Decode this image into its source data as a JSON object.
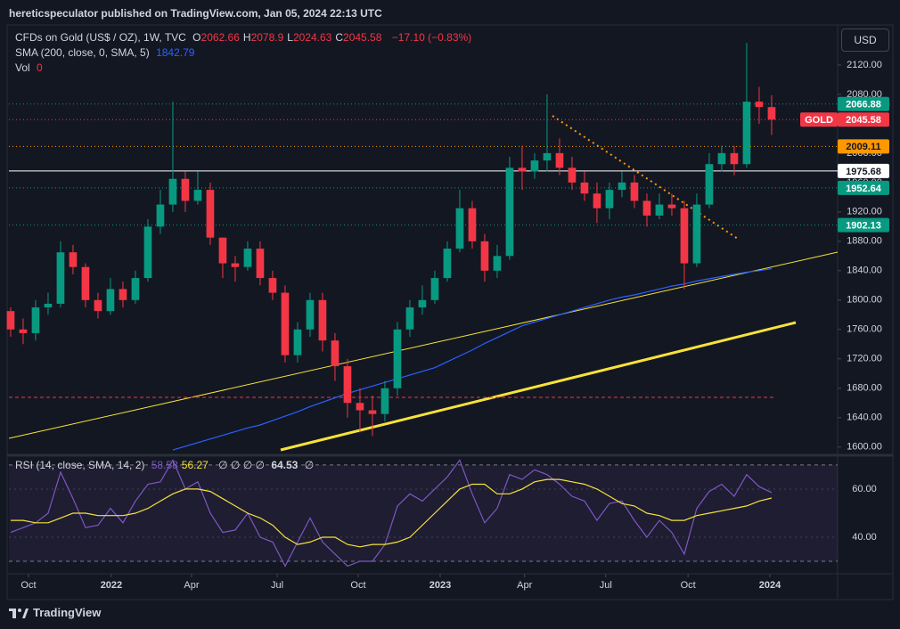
{
  "header": {
    "publisher": "hereticspeculator published on TradingView.com, Jan 05, 2024 22:13 UTC"
  },
  "chart_data": {
    "type": "candlestick",
    "legend": {
      "symbol": "CFDs on Gold (US$ / OZ), 1W, TVC",
      "ohlc": [
        {
          "label": "O",
          "value": 2062.66
        },
        {
          "label": "H",
          "value": 2078.9
        },
        {
          "label": "L",
          "value": 2024.63
        },
        {
          "label": "C",
          "value": 2045.58
        }
      ],
      "change": "−17.10 (−0.83%)",
      "sma_label": "SMA (200, close, 0, SMA, 5)",
      "sma_value": 1842.79,
      "vol_label": "Vol",
      "vol_value": 0
    },
    "currency": "USD",
    "open": [
      1785,
      1760,
      1755,
      1790,
      1795,
      1865,
      1845,
      1800,
      1785,
      1815,
      1800,
      1830,
      1900,
      1930,
      1965,
      1935,
      1950,
      1885,
      1850,
      1845,
      1870,
      1830,
      1810,
      1725,
      1760,
      1800,
      1745,
      1710,
      1660,
      1650,
      1645,
      1680,
      1760,
      1790,
      1800,
      1830,
      1870,
      1925,
      1880,
      1840,
      1860,
      1980,
      1975,
      1990,
      2000,
      1980,
      1960,
      1945,
      1925,
      1950,
      1960,
      1935,
      1915,
      1930,
      1925,
      1850,
      1930,
      1985,
      2000,
      1985,
      2070,
      2062.66
    ],
    "high": [
      1790,
      1775,
      1800,
      1810,
      1880,
      1875,
      1850,
      1810,
      1830,
      1825,
      1840,
      1910,
      1950,
      2070,
      1975,
      1975,
      1960,
      1885,
      1860,
      1880,
      1880,
      1840,
      1820,
      1770,
      1810,
      1810,
      1755,
      1720,
      1680,
      1670,
      1690,
      1770,
      1800,
      1820,
      1840,
      1880,
      1950,
      1935,
      1890,
      1875,
      1995,
      2010,
      2000,
      2080,
      2020,
      1995,
      1975,
      1960,
      1960,
      1975,
      1970,
      1945,
      1945,
      1945,
      1935,
      1945,
      2000,
      2010,
      2010,
      2150,
      2090,
      2078.9
    ],
    "low": [
      1750,
      1740,
      1745,
      1780,
      1790,
      1835,
      1790,
      1775,
      1780,
      1790,
      1795,
      1825,
      1890,
      1920,
      1920,
      1930,
      1875,
      1830,
      1825,
      1840,
      1820,
      1800,
      1715,
      1715,
      1750,
      1730,
      1690,
      1640,
      1620,
      1615,
      1635,
      1670,
      1750,
      1780,
      1795,
      1825,
      1865,
      1870,
      1825,
      1830,
      1855,
      1950,
      1965,
      1975,
      1970,
      1950,
      1935,
      1905,
      1910,
      1940,
      1925,
      1900,
      1910,
      1915,
      1815,
      1845,
      1925,
      1975,
      1970,
      1980,
      2040,
      2024.63
    ],
    "close": [
      1760,
      1755,
      1790,
      1795,
      1865,
      1845,
      1800,
      1785,
      1815,
      1800,
      1830,
      1900,
      1930,
      1965,
      1935,
      1950,
      1885,
      1850,
      1845,
      1870,
      1830,
      1810,
      1725,
      1760,
      1800,
      1745,
      1710,
      1660,
      1650,
      1645,
      1680,
      1760,
      1790,
      1800,
      1830,
      1870,
      1925,
      1880,
      1840,
      1860,
      1980,
      1975,
      1990,
      2000,
      1980,
      1960,
      1945,
      1925,
      1950,
      1960,
      1935,
      1915,
      1930,
      1925,
      1850,
      1930,
      1985,
      2000,
      1985,
      2070,
      2062.66,
      2045.58
    ],
    "up_color": "#089981",
    "down_color": "#f23645",
    "sma": {
      "color": "#2962ff",
      "values": [
        null,
        null,
        null,
        null,
        null,
        null,
        null,
        null,
        null,
        null,
        null,
        null,
        null,
        1596,
        1601,
        1606,
        1611,
        1616,
        1621,
        1626,
        1630,
        1636,
        1642,
        1648,
        1655,
        1661,
        1667,
        1673,
        1678,
        1683,
        1688,
        1693,
        1698,
        1703,
        1708,
        1716,
        1724,
        1732,
        1741,
        1749,
        1757,
        1765,
        1770,
        1775,
        1780,
        1785,
        1790,
        1795,
        1800,
        1804,
        1807,
        1811,
        1815,
        1819,
        1822,
        1826,
        1829,
        1832,
        1835,
        1838,
        1840,
        1842.79
      ]
    },
    "xlim": [
      -0.14,
      66.29
    ],
    "xticks": [
      {
        "value": 1.43,
        "label": "Oct"
      },
      {
        "value": 8.07,
        "label": "2022"
      },
      {
        "value": 14.5,
        "label": "Apr"
      },
      {
        "value": 21.36,
        "label": "Jul"
      },
      {
        "value": 27.86,
        "label": "Oct"
      },
      {
        "value": 34.43,
        "label": "2023"
      },
      {
        "value": 41.2,
        "label": "Apr"
      },
      {
        "value": 47.7,
        "label": "Jul"
      },
      {
        "value": 54.3,
        "label": "Oct"
      },
      {
        "value": 60.86,
        "label": "2024"
      }
    ],
    "ylim": [
      1590,
      2172
    ],
    "yticks": [
      {
        "value": 1600,
        "label": "1600.00"
      },
      {
        "value": 1640,
        "label": "1640.00"
      },
      {
        "value": 1680,
        "label": "1680.00"
      },
      {
        "value": 1720,
        "label": "1720.00"
      },
      {
        "value": 1760,
        "label": "1760.00"
      },
      {
        "value": 1800,
        "label": "1800.00"
      },
      {
        "value": 1840,
        "label": "1840.00"
      },
      {
        "value": 1880,
        "label": "1880.00"
      },
      {
        "value": 1920,
        "label": "1920.00"
      },
      {
        "value": 1960,
        "label": "1960.00"
      },
      {
        "value": 2000,
        "label": "2000.00"
      },
      {
        "value": 2040,
        "label": "2040.00"
      },
      {
        "value": 2080,
        "label": "2080.00"
      },
      {
        "value": 2120,
        "label": "2120.00"
      }
    ],
    "price_lines": [
      {
        "value": 2066.88,
        "color": "#089981",
        "text_color": "#ffffff",
        "style": "dotted"
      },
      {
        "value": 2045.58,
        "color": "#f23645",
        "text_color": "#ffffff",
        "style": "dotted",
        "name": "GOLD"
      },
      {
        "value": 2009.11,
        "color": "#ff9800",
        "text_color": "#131722",
        "style": "dotted"
      },
      {
        "value": 1975.68,
        "color": "#ffffff",
        "text_color": "#131722",
        "style": "solid"
      },
      {
        "value": 1952.64,
        "color": "#089981",
        "text_color": "#ffffff",
        "style": "dotted"
      },
      {
        "value": 1902.13,
        "color": "#089981",
        "text_color": "#ffffff",
        "style": "dotted"
      }
    ],
    "rsi": {
      "label": "RSI (14, close, SMA, 14, 2)",
      "legend_values": [
        {
          "value": 58.58,
          "color": "#7e57c2"
        },
        {
          "value": 56.27,
          "color": "#f7e23a"
        }
      ],
      "empty_marks": "∅ ∅ ∅ ∅",
      "extra_value": 64.53,
      "extra_mark": "∅",
      "color": "#7e57c2",
      "sma_color": "#f7e23a",
      "values": [
        42,
        44,
        46,
        50,
        67,
        56,
        44,
        45,
        52,
        46,
        55,
        62,
        63,
        72,
        60,
        63,
        50,
        42,
        43,
        50,
        40,
        38,
        28,
        38,
        48,
        38,
        33,
        28,
        30,
        30,
        37,
        53,
        58,
        55,
        60,
        65,
        72,
        58,
        46,
        52,
        66,
        64,
        68,
        66,
        62,
        57,
        55,
        47,
        54,
        55,
        47,
        40,
        47,
        42,
        33,
        52,
        59,
        62,
        57,
        66,
        61,
        58.58
      ],
      "sma_values": [
        47,
        47,
        46,
        46,
        48,
        50,
        50,
        49,
        49,
        49,
        50,
        52,
        55,
        58,
        60,
        60,
        59,
        56,
        53,
        50,
        48,
        45,
        40,
        37,
        38,
        40,
        40,
        37,
        36,
        37,
        37,
        38,
        40,
        45,
        50,
        55,
        60,
        62,
        62,
        58,
        58,
        60,
        63,
        64,
        64,
        63,
        62,
        60,
        57,
        54,
        53,
        50,
        49,
        47,
        47,
        49,
        50,
        51,
        52,
        53,
        55,
        56.27
      ],
      "ylim": [
        26.3,
        73.3
      ],
      "yticks": [
        {
          "value": 40,
          "label": "40.00"
        },
        {
          "value": 60,
          "label": "60.00"
        }
      ],
      "bands": [
        30,
        70
      ]
    }
  },
  "footer": {
    "brand": "TradingView"
  }
}
